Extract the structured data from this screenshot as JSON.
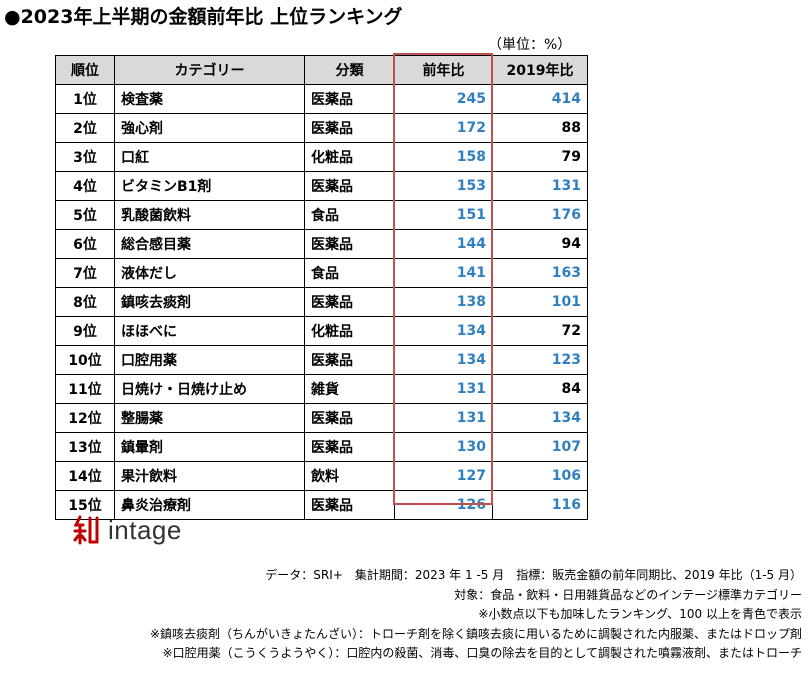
{
  "title": "●2023年上半期の金額前年比 上位ランキング",
  "unit": "（単位：%）",
  "chart_data": {
    "type": "table",
    "columns": [
      "順位",
      "カテゴリー",
      "分類",
      "前年比",
      "2019年比"
    ],
    "rows": [
      {
        "rank": "1位",
        "category": "検査薬",
        "class": "医薬品",
        "yoy": 245,
        "vs2019": 414
      },
      {
        "rank": "2位",
        "category": "強心剤",
        "class": "医薬品",
        "yoy": 172,
        "vs2019": 88
      },
      {
        "rank": "3位",
        "category": "口紅",
        "class": "化粧品",
        "yoy": 158,
        "vs2019": 79
      },
      {
        "rank": "4位",
        "category": "ビタミンB1剤",
        "class": "医薬品",
        "yoy": 153,
        "vs2019": 131
      },
      {
        "rank": "5位",
        "category": "乳酸菌飲料",
        "class": "食品",
        "yoy": 151,
        "vs2019": 176
      },
      {
        "rank": "6位",
        "category": "総合感目薬",
        "class": "医薬品",
        "yoy": 144,
        "vs2019": 94
      },
      {
        "rank": "7位",
        "category": "液体だし",
        "class": "食品",
        "yoy": 141,
        "vs2019": 163
      },
      {
        "rank": "8位",
        "category": "鎮咳去痰剤",
        "class": "医薬品",
        "yoy": 138,
        "vs2019": 101
      },
      {
        "rank": "9位",
        "category": "ほほべに",
        "class": "化粧品",
        "yoy": 134,
        "vs2019": 72
      },
      {
        "rank": "10位",
        "category": "口腔用薬",
        "class": "医薬品",
        "yoy": 134,
        "vs2019": 123
      },
      {
        "rank": "11位",
        "category": "日焼け・日焼け止め",
        "class": "雑貨",
        "yoy": 131,
        "vs2019": 84
      },
      {
        "rank": "12位",
        "category": "整腸薬",
        "class": "医薬品",
        "yoy": 131,
        "vs2019": 134
      },
      {
        "rank": "13位",
        "category": "鎮暈剤",
        "class": "医薬品",
        "yoy": 130,
        "vs2019": 107
      },
      {
        "rank": "14位",
        "category": "果汁飲料",
        "class": "飲料",
        "yoy": 127,
        "vs2019": 106
      },
      {
        "rank": "15位",
        "category": "鼻炎治療剤",
        "class": "医薬品",
        "yoy": 126,
        "vs2019": 116
      }
    ],
    "blue_threshold": 100,
    "highlight_color": "#2f7fc1",
    "normal_color": "#000000",
    "emphasis_border_color": "#c0504d"
  },
  "logo": {
    "text": "intage",
    "mark_color": "#c00000"
  },
  "notes": [
    "データ：SRI+　集計期間：2023 年 1 -5 月　指標：販売金額の前年同期比、2019 年比（1-5 月）",
    "対象：食品・飲料・日用雑貨品などのインテージ標準カテゴリー",
    "※小数点以下も加味したランキング、100 以上を青色で表示",
    "※鎮咳去痰剤（ちんがいきょたんざい）：トローチ剤を除く鎮咳去痰に用いるために調製された内服薬、またはドロップ剤",
    "※口腔用薬（こうくうようやく）：口腔内の殺菌、消毒、口臭の除去を目的として調製された噴霧液剤、またはトローチ"
  ]
}
